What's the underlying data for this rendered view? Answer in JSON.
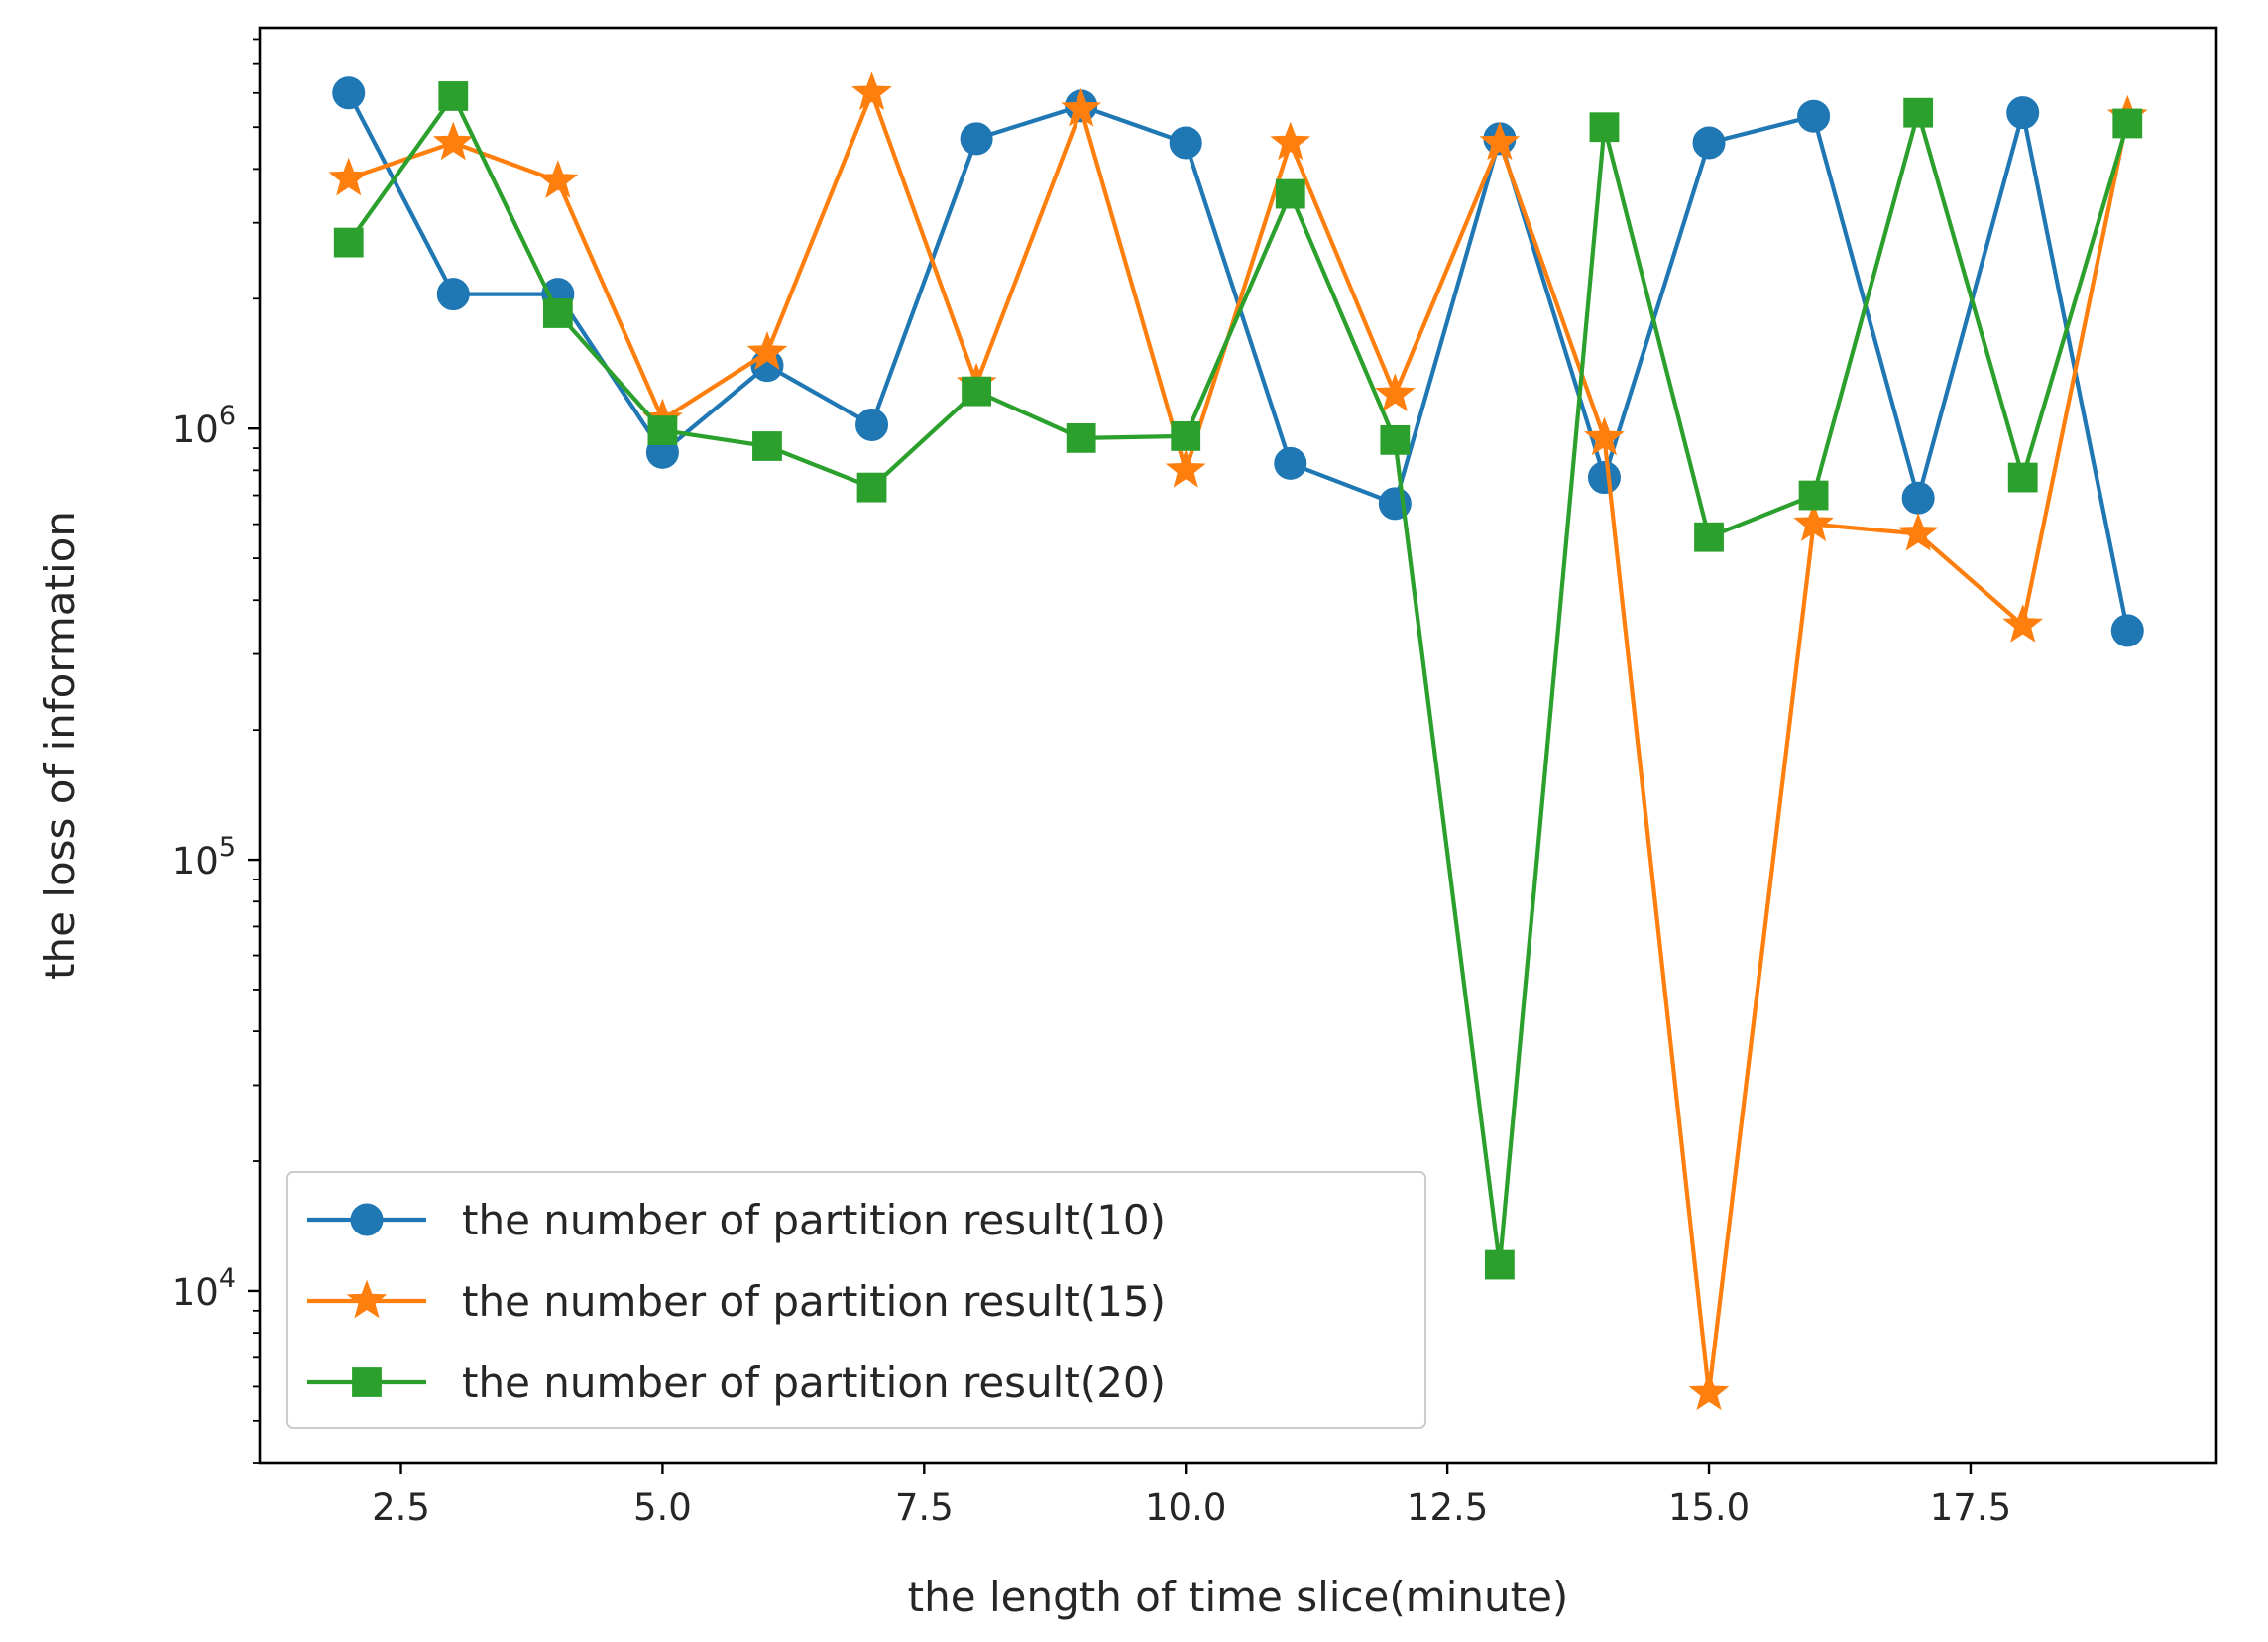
{
  "chart_data": {
    "type": "line",
    "title": "",
    "xlabel": "the length of time slice(minute)",
    "ylabel": "the loss of information",
    "xlim": [
      1.15,
      19.85
    ],
    "ylim": [
      4000,
      8500000
    ],
    "yscale": "log",
    "grid": false,
    "legend_position": "lower-left",
    "x_ticks": [
      {
        "value": 2.5,
        "label": "2.5"
      },
      {
        "value": 5.0,
        "label": "5.0"
      },
      {
        "value": 7.5,
        "label": "7.5"
      },
      {
        "value": 10.0,
        "label": "10.0"
      },
      {
        "value": 12.5,
        "label": "12.5"
      },
      {
        "value": 15.0,
        "label": "15.0"
      },
      {
        "value": 17.5,
        "label": "17.5"
      }
    ],
    "y_ticks": [
      {
        "value": 10000,
        "base": "10",
        "exp": "4"
      },
      {
        "value": 100000,
        "base": "10",
        "exp": "5"
      },
      {
        "value": 1000000,
        "base": "10",
        "exp": "6"
      }
    ],
    "x": [
      2,
      3,
      4,
      5,
      6,
      7,
      8,
      9,
      10,
      11,
      12,
      13,
      14,
      15,
      16,
      17,
      18,
      19
    ],
    "series": [
      {
        "name": "the number of partition result(10)",
        "color": "#1f77b4",
        "marker": "circle",
        "values": [
          6000000,
          2050000,
          2050000,
          880000,
          1400000,
          1020000,
          4700000,
          5600000,
          4600000,
          830000,
          670000,
          4700000,
          770000,
          4600000,
          5300000,
          690000,
          5400000,
          340000
        ]
      },
      {
        "name": "the number of partition result(15)",
        "color": "#ff7f0e",
        "marker": "star",
        "values": [
          3800000,
          4600000,
          3750000,
          1050000,
          1500000,
          6000000,
          1270000,
          5500000,
          800000,
          4600000,
          1200000,
          4600000,
          950000,
          5800,
          600000,
          570000,
          350000,
          5300000
        ]
      },
      {
        "name": "the number of partition result(20)",
        "color": "#2ca02c",
        "marker": "square",
        "values": [
          2700000,
          5900000,
          1850000,
          990000,
          910000,
          730000,
          1220000,
          950000,
          960000,
          3500000,
          940000,
          11500,
          5000000,
          560000,
          700000,
          5400000,
          770000,
          5100000
        ]
      }
    ]
  }
}
